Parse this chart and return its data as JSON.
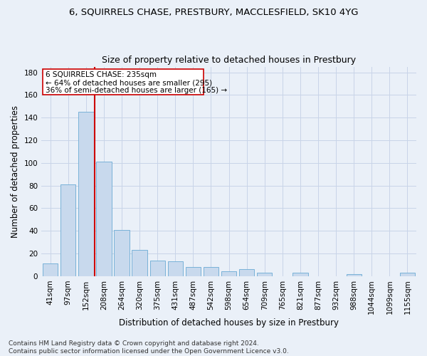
{
  "title": "6, SQUIRRELS CHASE, PRESTBURY, MACCLESFIELD, SK10 4YG",
  "subtitle": "Size of property relative to detached houses in Prestbury",
  "xlabel": "Distribution of detached houses by size in Prestbury",
  "ylabel": "Number of detached properties",
  "categories": [
    "41sqm",
    "97sqm",
    "152sqm",
    "208sqm",
    "264sqm",
    "320sqm",
    "375sqm",
    "431sqm",
    "487sqm",
    "542sqm",
    "598sqm",
    "654sqm",
    "709sqm",
    "765sqm",
    "821sqm",
    "877sqm",
    "932sqm",
    "988sqm",
    "1044sqm",
    "1099sqm",
    "1155sqm"
  ],
  "values": [
    11,
    81,
    145,
    101,
    41,
    23,
    14,
    13,
    8,
    8,
    4,
    6,
    3,
    0,
    3,
    0,
    0,
    2,
    0,
    0,
    3
  ],
  "bar_color": "#c8d9ed",
  "bar_edge_color": "#6aaad4",
  "grid_color": "#c8d4e8",
  "background_color": "#eaf0f8",
  "vline_color": "#cc0000",
  "annotation_text_line1": "6 SQUIRRELS CHASE: 235sqm",
  "annotation_text_line2": "← 64% of detached houses are smaller (295)",
  "annotation_text_line3": "36% of semi-detached houses are larger (165) →",
  "annotation_box_color": "white",
  "annotation_box_edge": "#cc0000",
  "ylim": [
    0,
    185
  ],
  "yticks": [
    0,
    20,
    40,
    60,
    80,
    100,
    120,
    140,
    160,
    180
  ],
  "footnote": "Contains HM Land Registry data © Crown copyright and database right 2024.\nContains public sector information licensed under the Open Government Licence v3.0.",
  "title_fontsize": 9.5,
  "subtitle_fontsize": 9,
  "label_fontsize": 8.5,
  "tick_fontsize": 7.5,
  "annotation_fontsize": 7.5,
  "footnote_fontsize": 6.5
}
